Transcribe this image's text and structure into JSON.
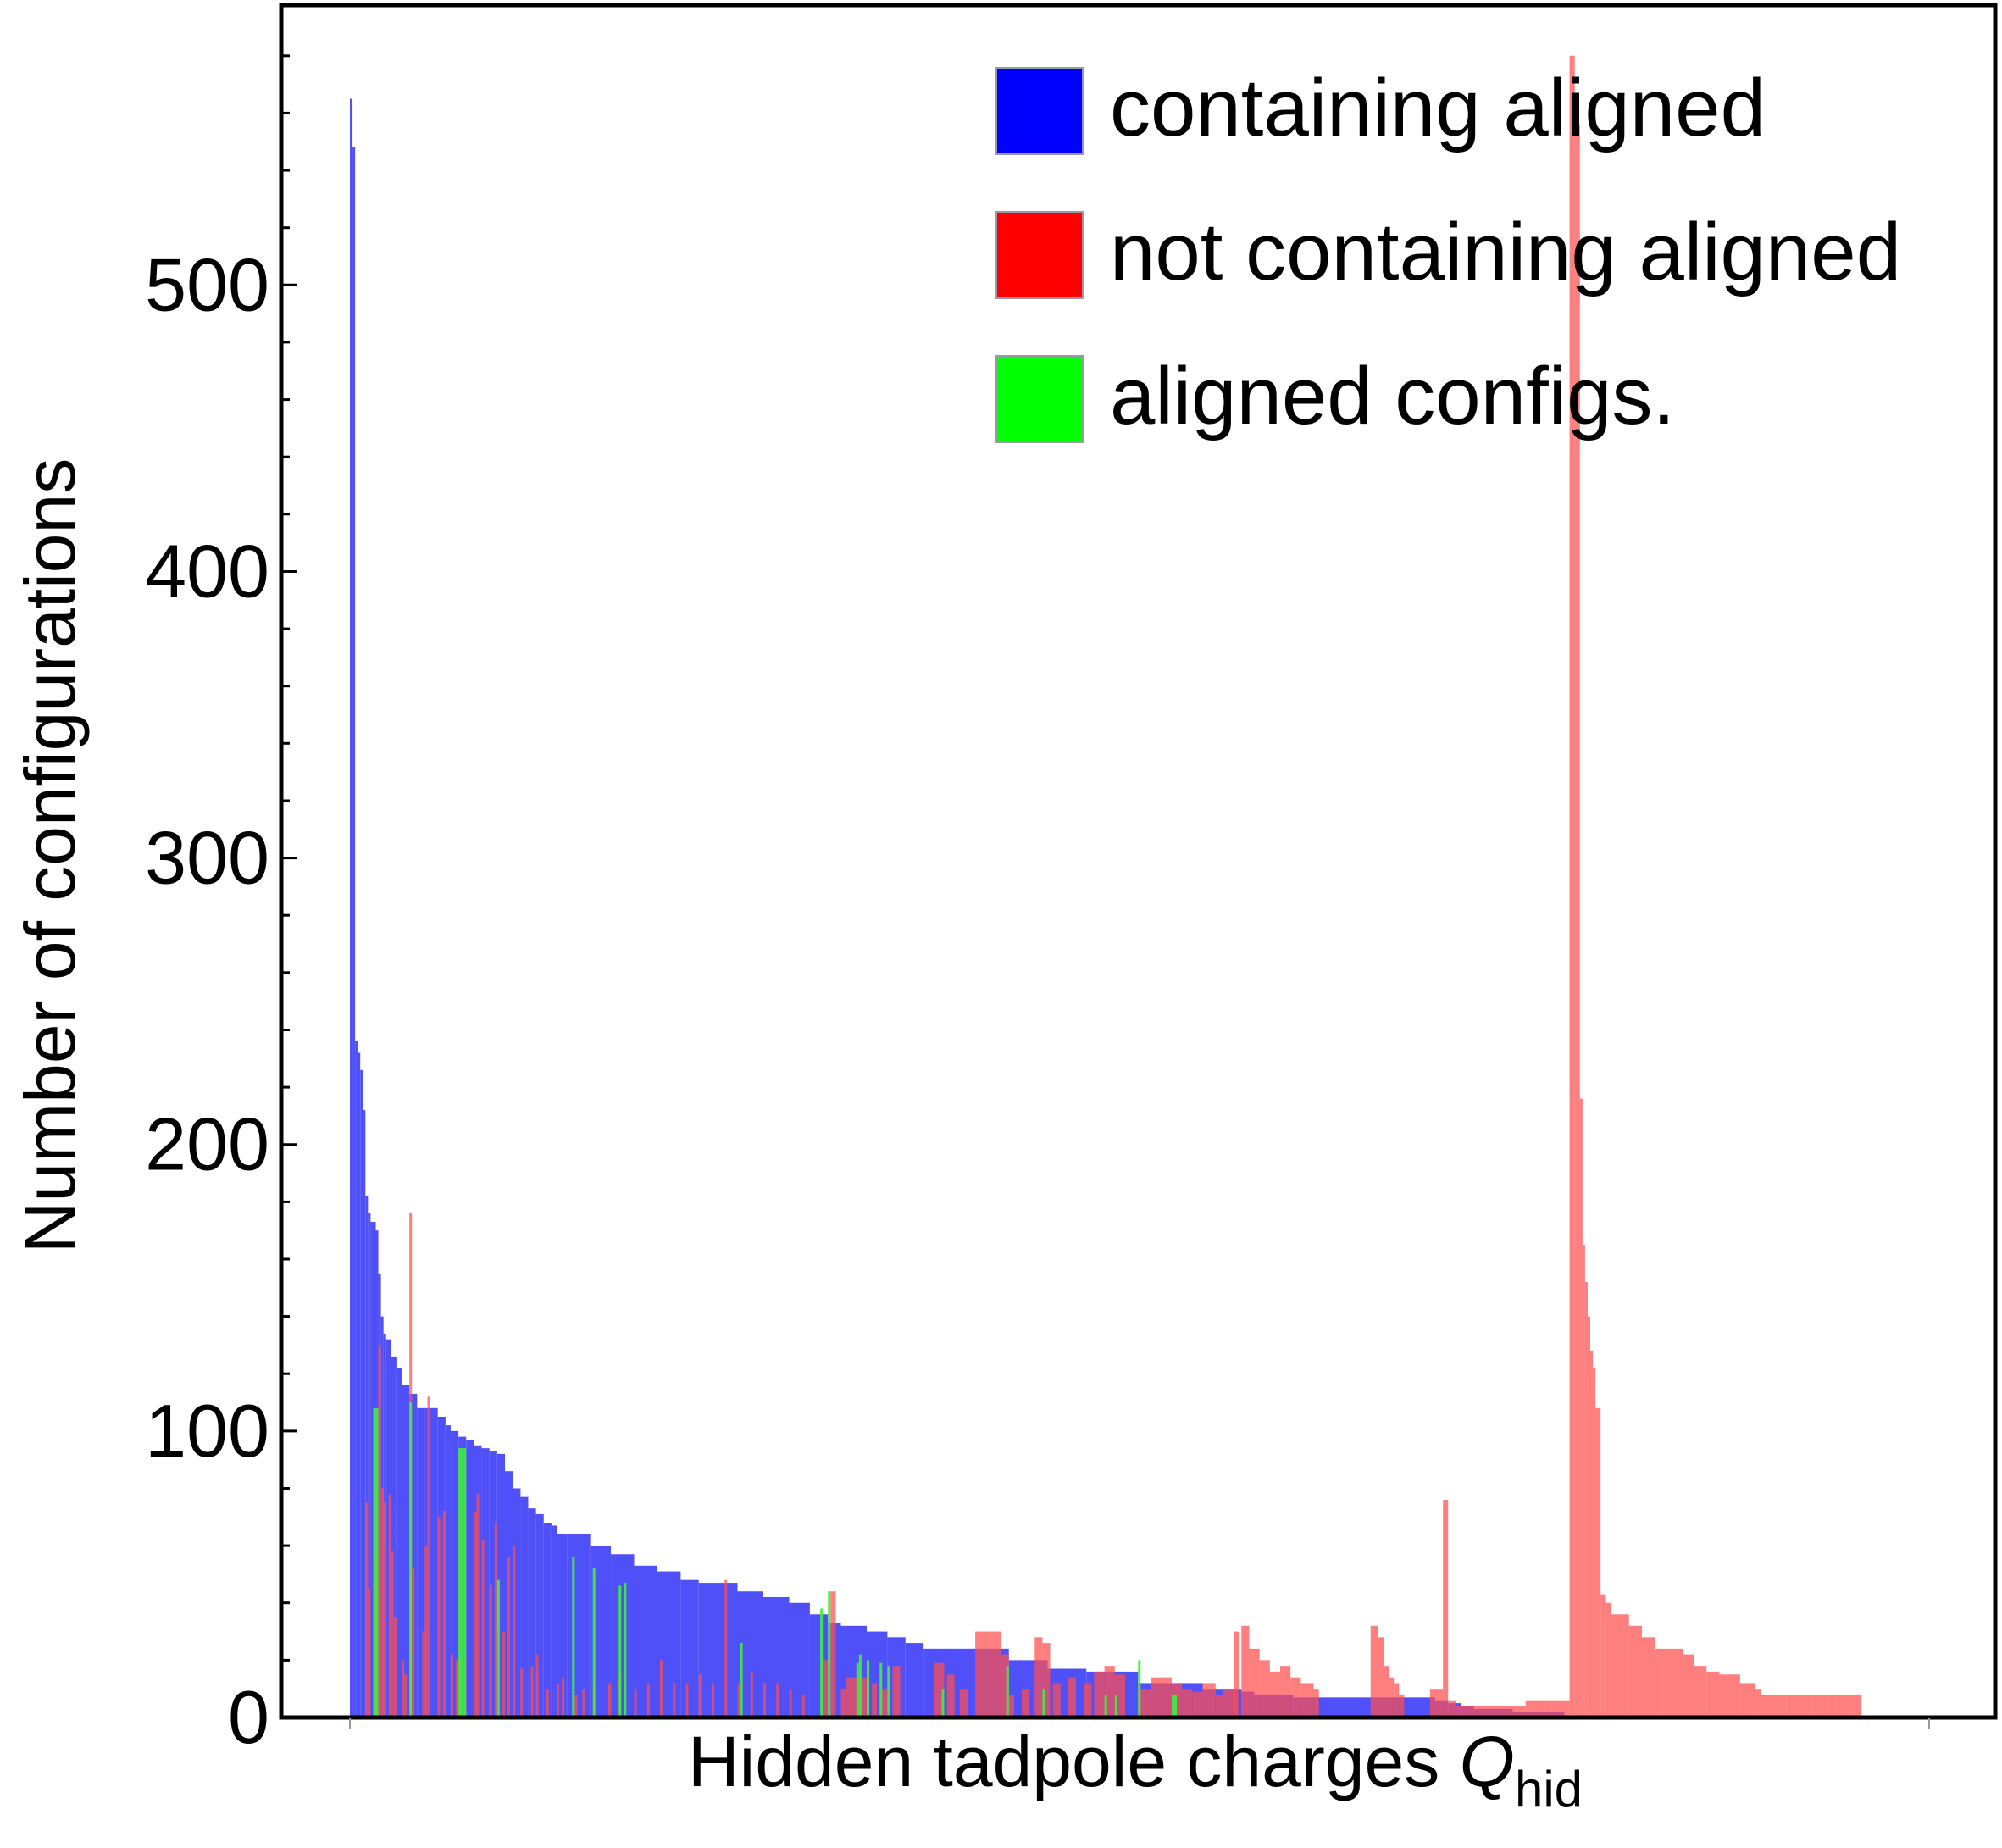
{
  "colors": {
    "containing_aligned": "#5050F8",
    "not_containing_aligned": "#FF4D4D",
    "aligned_configs": "#40EE40",
    "overlap_red_on_blue": "#CC2255",
    "overlap_green_on_blue": "#35CC88",
    "legend_blue": "#0000FF",
    "legend_red": "#FF0000",
    "legend_green": "#00FF00",
    "frame": "#000000"
  },
  "chart_data": {
    "type": "bar",
    "xlabel": "Hidden tadpole charges",
    "xlabel_symbol": "Q",
    "xlabel_subscript": "hid",
    "ylabel": "Number of configurations",
    "ylim": [
      0,
      590
    ],
    "xlim": [
      -20,
      480
    ],
    "yticks": [
      0,
      100,
      200,
      300,
      400,
      500
    ],
    "y_minor_step": 20,
    "grid": false,
    "legend_position": "top-right",
    "legend": [
      {
        "label": "containing aligned",
        "color_key": "legend_blue"
      },
      {
        "label": "not containing aligned",
        "color_key": "legend_red"
      },
      {
        "label": "aligned configs.",
        "color_key": "legend_green"
      }
    ],
    "series": [
      {
        "name": "containing aligned",
        "color_key": "containing_aligned",
        "bars": [
          [
            0,
            1,
            565
          ],
          [
            1,
            2,
            548
          ],
          [
            2,
            3,
            236
          ],
          [
            3,
            4,
            232
          ],
          [
            4,
            5,
            226
          ],
          [
            5,
            6,
            212
          ],
          [
            6,
            7,
            182
          ],
          [
            7,
            8,
            176
          ],
          [
            8,
            10,
            173
          ],
          [
            10,
            11,
            170
          ],
          [
            11,
            12,
            155
          ],
          [
            12,
            13,
            140
          ],
          [
            13,
            14,
            134
          ],
          [
            14,
            16,
            132
          ],
          [
            16,
            18,
            126
          ],
          [
            18,
            20,
            122
          ],
          [
            20,
            23,
            116
          ],
          [
            23,
            26,
            113
          ],
          [
            26,
            29,
            108
          ],
          [
            29,
            34,
            108
          ],
          [
            34,
            37,
            105
          ],
          [
            37,
            39,
            102
          ],
          [
            39,
            42,
            100
          ],
          [
            42,
            45,
            98
          ],
          [
            45,
            48,
            97
          ],
          [
            48,
            51,
            95
          ],
          [
            51,
            54,
            94
          ],
          [
            54,
            57,
            93
          ],
          [
            57,
            60,
            92
          ],
          [
            60,
            63,
            86
          ],
          [
            63,
            66,
            80
          ],
          [
            63,
            66,
            80
          ],
          [
            66,
            69,
            77
          ],
          [
            69,
            72,
            73
          ],
          [
            72,
            75,
            71
          ],
          [
            75,
            78,
            68
          ],
          [
            78,
            80,
            67
          ],
          [
            80,
            84,
            64
          ],
          [
            84,
            93,
            64
          ],
          [
            93,
            101,
            60
          ],
          [
            101,
            110,
            57
          ],
          [
            110,
            119,
            53
          ],
          [
            119,
            128,
            51
          ],
          [
            128,
            135,
            48
          ],
          [
            135,
            150,
            47
          ],
          [
            150,
            160,
            44
          ],
          [
            160,
            170,
            42
          ],
          [
            170,
            178,
            40
          ],
          [
            178,
            185,
            36
          ],
          [
            185,
            190,
            33
          ],
          [
            190,
            200,
            32
          ],
          [
            200,
            208,
            30
          ],
          [
            208,
            215,
            28
          ],
          [
            215,
            222,
            26
          ],
          [
            222,
            235,
            24
          ],
          [
            235,
            255,
            24
          ],
          [
            255,
            270,
            20
          ],
          [
            270,
            285,
            17
          ],
          [
            285,
            305,
            16
          ],
          [
            305,
            330,
            12
          ],
          [
            330,
            345,
            10
          ],
          [
            345,
            350,
            9
          ],
          [
            350,
            365,
            8
          ],
          [
            365,
            380,
            7
          ],
          [
            380,
            420,
            7
          ],
          [
            420,
            425,
            6
          ],
          [
            425,
            430,
            5
          ],
          [
            430,
            435,
            4
          ],
          [
            435,
            450,
            3
          ],
          [
            450,
            460,
            2
          ],
          [
            460,
            470,
            2
          ],
          [
            470,
            480,
            0
          ]
        ]
      },
      {
        "name": "not containing aligned",
        "color_key": "not_containing_aligned",
        "bars": [
          [
            6,
            7,
            75
          ],
          [
            7,
            8,
            45
          ],
          [
            9,
            11,
            55
          ],
          [
            11,
            12,
            130
          ],
          [
            12,
            13,
            80
          ],
          [
            13,
            14,
            75
          ],
          [
            15,
            16,
            78
          ],
          [
            16,
            17,
            58
          ],
          [
            17,
            18,
            35
          ],
          [
            20,
            21,
            20
          ],
          [
            21,
            22,
            15
          ],
          [
            23,
            24,
            176
          ],
          [
            24,
            25,
            52
          ],
          [
            28,
            29,
            30
          ],
          [
            29,
            30,
            60
          ],
          [
            30,
            31,
            112
          ],
          [
            34,
            35,
            70
          ],
          [
            36,
            37,
            72
          ],
          [
            39,
            40,
            22
          ],
          [
            41,
            43,
            20
          ],
          [
            44,
            45,
            20
          ],
          [
            48,
            49,
            72
          ],
          [
            49,
            50,
            78
          ],
          [
            51,
            52,
            62
          ],
          [
            54,
            55,
            46
          ],
          [
            56,
            57,
            68
          ],
          [
            59,
            60,
            30
          ],
          [
            61,
            62,
            56
          ],
          [
            63,
            64,
            60
          ],
          [
            66,
            67,
            17
          ],
          [
            70,
            71,
            18
          ],
          [
            72,
            73,
            22
          ],
          [
            76,
            77,
            10
          ],
          [
            80,
            81,
            12
          ],
          [
            82,
            83,
            14
          ],
          [
            87,
            88,
            8
          ],
          [
            90,
            91,
            10
          ],
          [
            94,
            95,
            12
          ],
          [
            100,
            101,
            12
          ],
          [
            104,
            105,
            15
          ],
          [
            110,
            111,
            10
          ],
          [
            115,
            116,
            12
          ],
          [
            120,
            121,
            20
          ],
          [
            125,
            126,
            12
          ],
          [
            130,
            131,
            12
          ],
          [
            135,
            136,
            15
          ],
          [
            140,
            141,
            12
          ],
          [
            145,
            146,
            48
          ],
          [
            150,
            151,
            12
          ],
          [
            155,
            156,
            16
          ],
          [
            160,
            161,
            12
          ],
          [
            165,
            166,
            12
          ],
          [
            170,
            171,
            10
          ],
          [
            175,
            176,
            8
          ],
          [
            183,
            185,
            20
          ],
          [
            186,
            188,
            44
          ],
          [
            190,
            192,
            10
          ],
          [
            192,
            195,
            14
          ],
          [
            195,
            200,
            14
          ],
          [
            202,
            204,
            12
          ],
          [
            205,
            208,
            10
          ],
          [
            210,
            213,
            18
          ],
          [
            226,
            230,
            19
          ],
          [
            231,
            234,
            15
          ],
          [
            236,
            239,
            10
          ],
          [
            242,
            248,
            30
          ],
          [
            248,
            252,
            30
          ],
          [
            252,
            255,
            22
          ],
          [
            255,
            257,
            8
          ],
          [
            260,
            263,
            10
          ],
          [
            265,
            268,
            28
          ],
          [
            268,
            271,
            26
          ],
          [
            272,
            275,
            12
          ],
          [
            278,
            281,
            14
          ],
          [
            284,
            287,
            12
          ],
          [
            288,
            292,
            16
          ],
          [
            292,
            296,
            18
          ],
          [
            296,
            300,
            15
          ],
          [
            305,
            310,
            10
          ],
          [
            310,
            318,
            14
          ],
          [
            318,
            322,
            12
          ],
          [
            322,
            326,
            10
          ],
          [
            326,
            330,
            9
          ],
          [
            330,
            335,
            12
          ],
          [
            335,
            338,
            8
          ],
          [
            338,
            343,
            10
          ],
          [
            342,
            344,
            30
          ],
          [
            345,
            348,
            32
          ],
          [
            348,
            352,
            24
          ],
          [
            352,
            356,
            20
          ],
          [
            356,
            360,
            16
          ],
          [
            360,
            364,
            18
          ],
          [
            364,
            368,
            14
          ],
          [
            368,
            373,
            12
          ],
          [
            373,
            375,
            10
          ],
          [
            395,
            398,
            32
          ],
          [
            398,
            400,
            28
          ],
          [
            400,
            402,
            18
          ],
          [
            402,
            404,
            14
          ],
          [
            404,
            406,
            12
          ],
          [
            406,
            408,
            8
          ],
          [
            418,
            420,
            10
          ],
          [
            420,
            423,
            10
          ],
          [
            423,
            425,
            76
          ],
          [
            425,
            428,
            6
          ],
          [
            428,
            432,
            4
          ],
          [
            432,
            440,
            4
          ],
          [
            440,
            447,
            4
          ],
          [
            447,
            455,
            4
          ],
          [
            455,
            465,
            6
          ],
          [
            465,
            472,
            6
          ],
          [
            472,
            474,
            580
          ],
          [
            474,
            476,
            556
          ],
          [
            476,
            477,
            216
          ],
          [
            477,
            478,
            165
          ],
          [
            478,
            479,
            152
          ],
          [
            479,
            480,
            140
          ],
          [
            480,
            481,
            128
          ],
          [
            481,
            482,
            122
          ],
          [
            482,
            484,
            108
          ],
          [
            484,
            486,
            43
          ],
          [
            486,
            488,
            40
          ],
          [
            488,
            490,
            36
          ],
          [
            490,
            495,
            36
          ],
          [
            495,
            500,
            32
          ],
          [
            500,
            505,
            28
          ],
          [
            505,
            508,
            24
          ],
          [
            508,
            516,
            24
          ],
          [
            516,
            520,
            22
          ],
          [
            520,
            525,
            18
          ],
          [
            525,
            530,
            16
          ],
          [
            530,
            538,
            15
          ],
          [
            538,
            544,
            12
          ],
          [
            544,
            546,
            10
          ],
          [
            546,
            556,
            8
          ],
          [
            556,
            566,
            8
          ],
          [
            566,
            572,
            8
          ],
          [
            572,
            575,
            8
          ],
          [
            575,
            582,
            8
          ],
          [
            582,
            585,
            8
          ],
          [
            585,
            600,
            0
          ]
        ]
      },
      {
        "name": "aligned configs.",
        "color_key": "aligned_configs",
        "bars": [
          [
            9,
            10,
            108
          ],
          [
            10,
            11,
            108
          ],
          [
            23,
            24,
            110
          ],
          [
            42,
            44,
            94
          ],
          [
            44,
            45,
            94
          ],
          [
            57,
            58,
            48
          ],
          [
            86,
            87,
            56
          ],
          [
            94,
            95,
            52
          ],
          [
            104,
            105,
            46
          ],
          [
            106,
            107,
            47
          ],
          [
            151,
            152,
            26
          ],
          [
            182,
            183,
            38
          ],
          [
            185,
            186,
            44
          ],
          [
            196,
            197,
            19
          ],
          [
            197,
            198,
            22
          ],
          [
            200,
            201,
            20
          ],
          [
            205,
            206,
            19
          ],
          [
            208,
            209,
            18
          ],
          [
            229,
            230,
            10
          ],
          [
            254,
            255,
            18
          ],
          [
            268,
            269,
            10
          ],
          [
            292,
            293,
            8
          ],
          [
            296,
            297,
            8
          ],
          [
            305,
            306,
            20
          ],
          [
            318,
            320,
            8
          ]
        ]
      }
    ]
  }
}
